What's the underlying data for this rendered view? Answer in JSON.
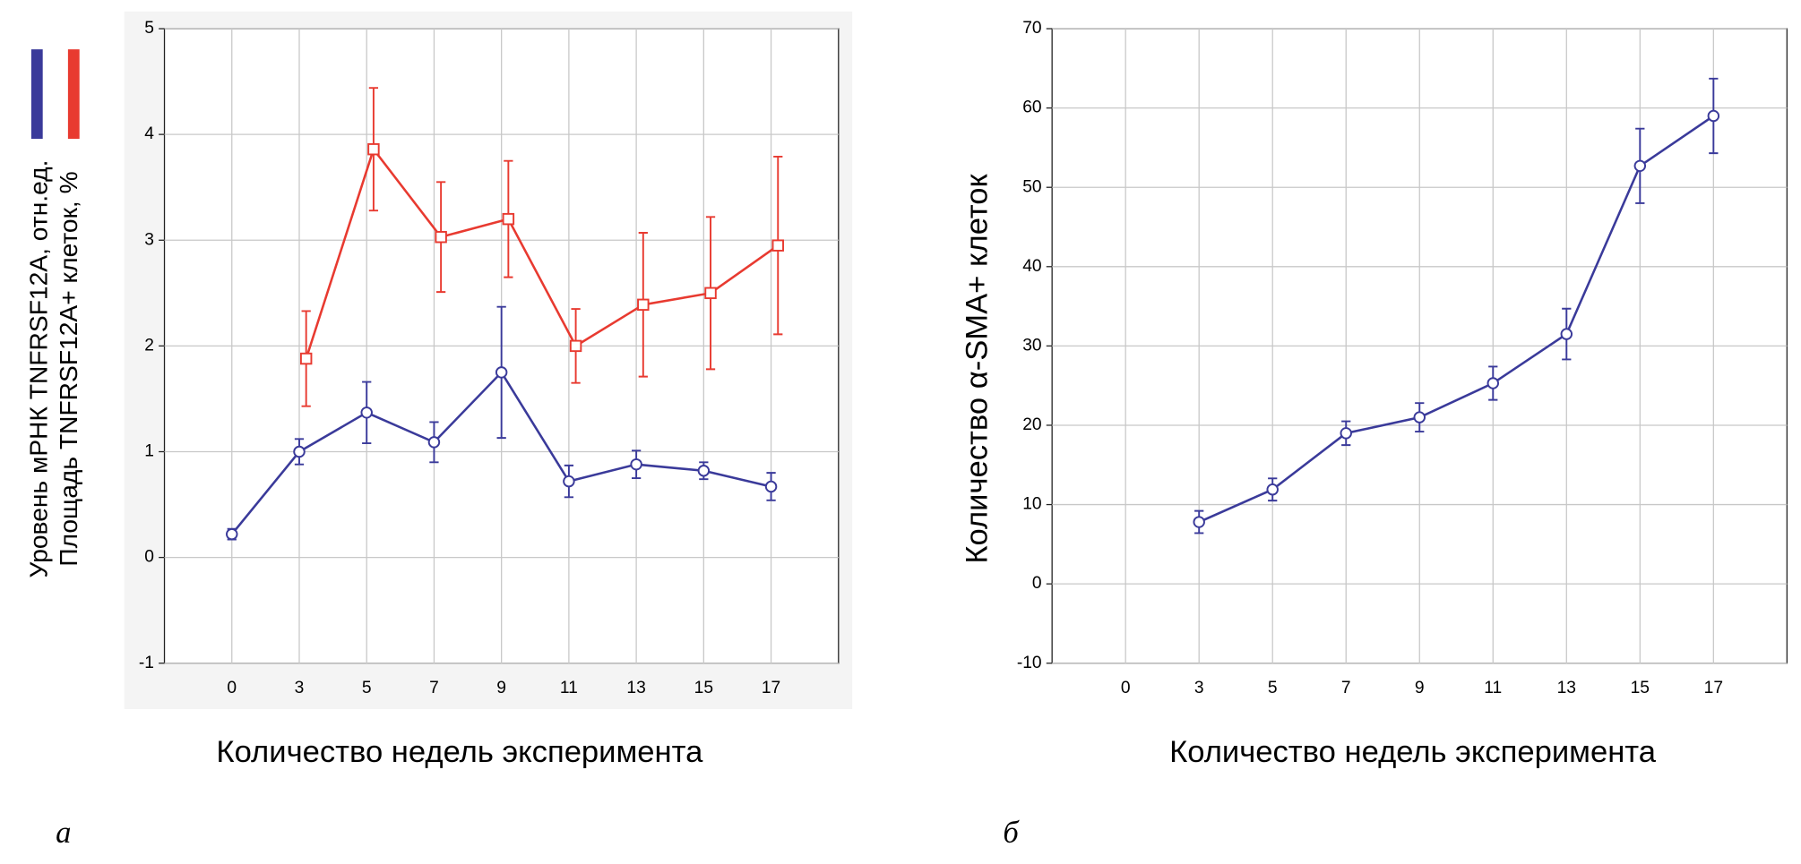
{
  "chart_data": [
    {
      "type": "line",
      "panel_label": "а",
      "xlabel": "Количество недель эксперимента",
      "ylabel": [
        "Уровень мРНК TNFRSF12A, отн.ед.",
        "Площадь TNFRSF12A+ клеток, %"
      ],
      "categories": [
        "0",
        "3",
        "5",
        "7",
        "9",
        "11",
        "13",
        "15",
        "17"
      ],
      "series": [
        {
          "color": "#3a3a9a",
          "marker": "circle",
          "values": [
            0.22,
            1.0,
            1.37,
            1.09,
            1.75,
            0.72,
            0.88,
            0.82,
            0.67
          ],
          "errors": [
            0.05,
            0.12,
            0.29,
            0.19,
            0.62,
            0.15,
            0.13,
            0.08,
            0.13
          ]
        },
        {
          "color": "#e83a30",
          "marker": "square",
          "values": [
            null,
            1.88,
            3.86,
            3.03,
            3.2,
            2.0,
            2.39,
            2.5,
            2.95
          ],
          "errors": [
            null,
            0.45,
            0.58,
            0.52,
            0.55,
            0.35,
            0.68,
            0.72,
            0.84
          ]
        }
      ],
      "ylim": [
        -1,
        5
      ],
      "yticks": [
        -1,
        0,
        1,
        2,
        3,
        4,
        5
      ],
      "grid": true
    },
    {
      "type": "line",
      "panel_label": "б",
      "xlabel": "Количество недель эксперимента",
      "ylabel": [
        "Количество α-SMA+ клеток"
      ],
      "categories": [
        "0",
        "3",
        "5",
        "7",
        "9",
        "11",
        "13",
        "15",
        "17"
      ],
      "series": [
        {
          "color": "#3a3a9a",
          "marker": "circle",
          "values": [
            null,
            7.8,
            11.9,
            19.0,
            21.0,
            25.3,
            31.5,
            52.7,
            59.0
          ],
          "errors": [
            null,
            1.4,
            1.4,
            1.5,
            1.8,
            2.1,
            3.2,
            4.7,
            4.7
          ]
        }
      ],
      "ylim": [
        -10,
        70
      ],
      "yticks": [
        -10,
        0,
        10,
        20,
        30,
        40,
        50,
        60,
        70
      ],
      "grid": true
    }
  ]
}
